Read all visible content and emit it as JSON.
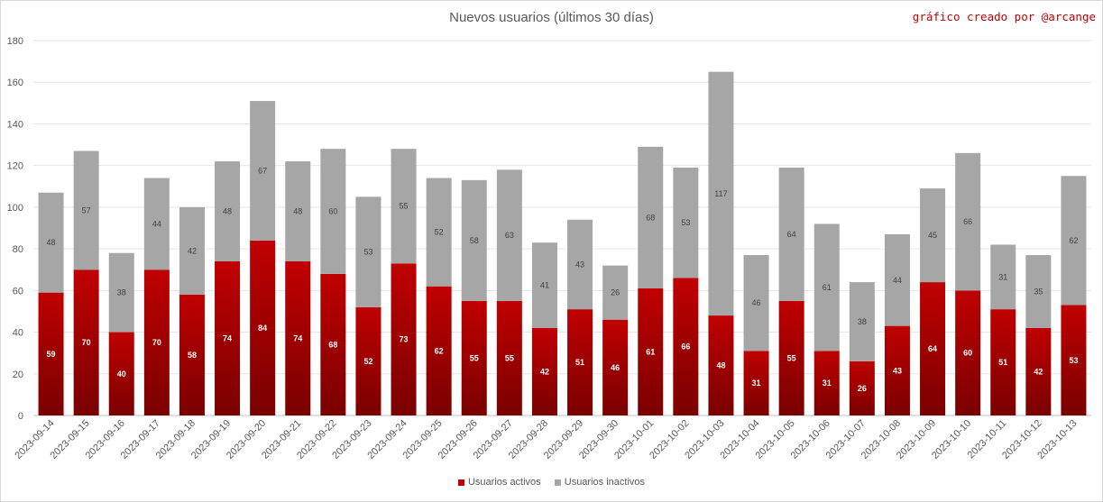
{
  "chart_data": {
    "type": "bar",
    "stacked": true,
    "title": "Nuevos usuarios (últimos 30 días)",
    "credit": "gráfico creado por @arcange",
    "xlabel": "",
    "ylabel": "",
    "ylim": [
      0,
      180
    ],
    "yticks": [
      0,
      20,
      40,
      60,
      80,
      100,
      120,
      140,
      160,
      180
    ],
    "grid": true,
    "legend_position": "bottom",
    "categories": [
      "2023-09-14",
      "2023-09-15",
      "2023-09-16",
      "2023-09-17",
      "2023-09-18",
      "2023-09-19",
      "2023-09-20",
      "2023-09-21",
      "2023-09-22",
      "2023-09-23",
      "2023-09-24",
      "2023-09-25",
      "2023-09-26",
      "2023-09-27",
      "2023-09-28",
      "2023-09-29",
      "2023-09-30",
      "2023-10-01",
      "2023-10-02",
      "2023-10-03",
      "2023-10-04",
      "2023-10-05",
      "2023-10-06",
      "2023-10-07",
      "2023-10-08",
      "2023-10-09",
      "2023-10-10",
      "2023-10-11",
      "2023-10-12",
      "2023-10-13"
    ],
    "series": [
      {
        "name": "Usuarios activos",
        "color": "#c00000",
        "color_dark": "#7a0000",
        "values": [
          59,
          70,
          40,
          70,
          58,
          74,
          84,
          74,
          68,
          52,
          73,
          62,
          55,
          55,
          42,
          51,
          46,
          61,
          66,
          48,
          31,
          55,
          31,
          26,
          43,
          64,
          60,
          51,
          42,
          53
        ]
      },
      {
        "name": "Usuarios inactivos",
        "color": "#a6a6a6",
        "values": [
          48,
          57,
          38,
          44,
          42,
          48,
          67,
          48,
          60,
          53,
          55,
          52,
          58,
          63,
          41,
          43,
          26,
          68,
          53,
          117,
          46,
          64,
          61,
          38,
          44,
          45,
          66,
          31,
          35,
          62
        ]
      }
    ]
  }
}
